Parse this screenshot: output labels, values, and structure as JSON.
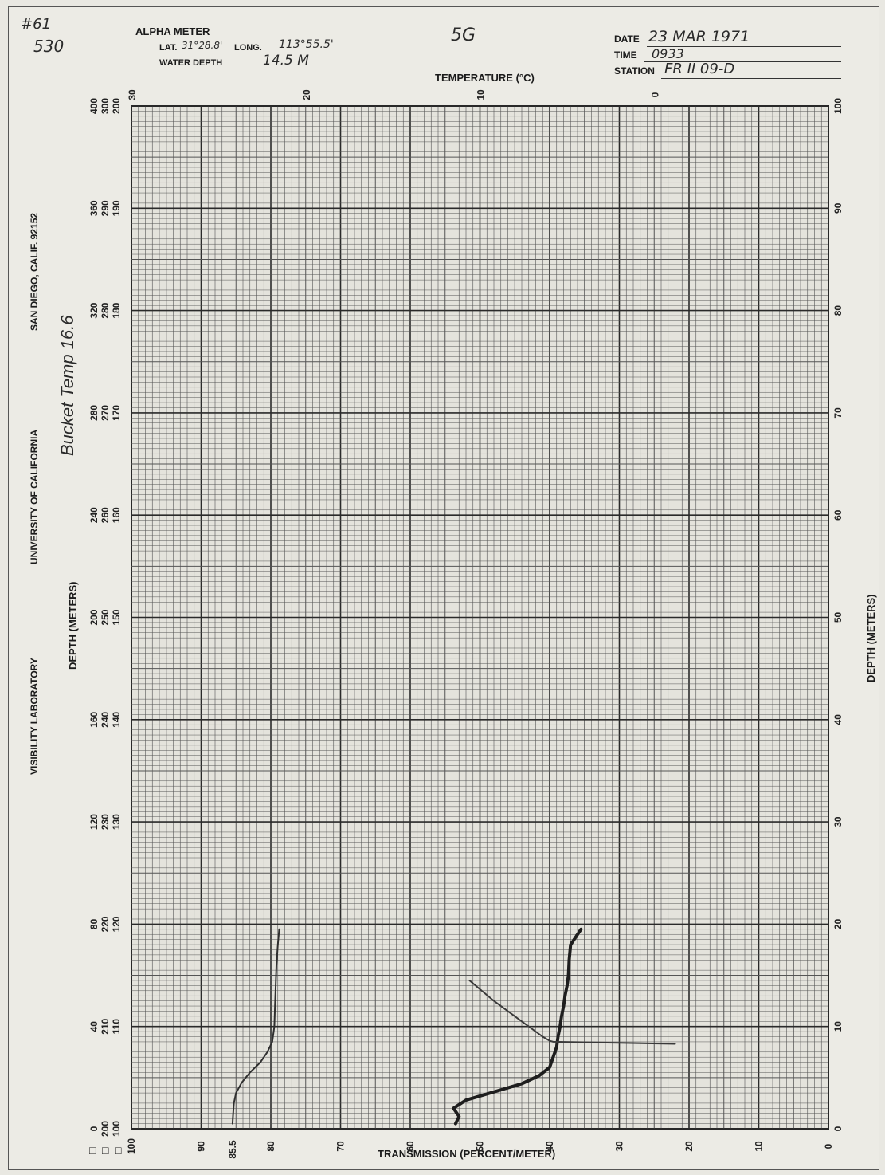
{
  "form": {
    "corner_1": "#61",
    "corner_2": "530",
    "title": "ALPHA METER",
    "lat_label": "LAT.",
    "lat_value": "31°28.8'",
    "long_label": "LONG.",
    "long_value": "113°55.5'",
    "water_depth_label": "WATER DEPTH",
    "water_depth_value": "14.5 M",
    "center_note": "5G",
    "date_label": "DATE",
    "date_value": "23 MAR 1971",
    "time_label": "TIME",
    "time_value": "0933",
    "station_label": "STATION",
    "station_value": "FR II 09-D",
    "bucket_temp_note": "Bucket Temp 16.6",
    "lab": "VISIBILITY LABORATORY",
    "university": "UNIVERSITY OF CALIFORNIA",
    "city": "SAN DIEGO, CALIF.  92152",
    "boxes": [
      "□",
      "□",
      "□"
    ]
  },
  "chart_data": {
    "type": "line",
    "xlabel": "TRANSMISSION (PERCENT/METER)",
    "top_label": "TEMPERATURE (°C)",
    "ylabel_left": "DEPTH (METERS)",
    "ylabel_right": "DEPTH (METERS)",
    "xlim": [
      100,
      0
    ],
    "ylim": [
      0,
      100
    ],
    "x_ticks": [
      "100",
      "90",
      "80",
      "70",
      "60",
      "50",
      "40",
      "30",
      "20",
      "10",
      "0"
    ],
    "x_annotation": "85.5",
    "top_ticks": [
      "30",
      "20",
      "10",
      "0"
    ],
    "top_tick_positions": [
      0,
      25,
      50,
      75
    ],
    "y_ticks_right": [
      "0",
      "10",
      "20",
      "30",
      "40",
      "50",
      "60",
      "70",
      "80",
      "90",
      "100"
    ],
    "left_scales": [
      [
        "0",
        "40",
        "80",
        "120",
        "160",
        "200",
        "240",
        "280",
        "320",
        "360",
        "400"
      ],
      [
        "200",
        "210",
        "220",
        "230",
        "240",
        "250",
        "260",
        "270",
        "280",
        "290",
        "300"
      ],
      [
        "100",
        "110",
        "120",
        "130",
        "140",
        "150",
        "160",
        "170",
        "180",
        "190",
        "200"
      ]
    ],
    "grid": true,
    "series": [
      {
        "color": "#2f2f2f",
        "x": [
          85.5,
          85.4,
          85.3,
          85.0,
          84.2,
          83.0,
          81.5,
          80.5,
          79.8,
          79.5,
          79.4,
          79.3,
          79.2,
          79.0,
          78.8
        ],
        "y": [
          0.5,
          1.5,
          2.5,
          3.5,
          4.5,
          5.5,
          6.5,
          7.5,
          8.5,
          10,
          12,
          14,
          16,
          18,
          19.5
        ]
      },
      {
        "color": "#1e1e1e",
        "x": [
          53.5,
          53.0,
          53.8,
          52.0,
          48.0,
          44.0,
          41.5,
          40.0,
          39.5,
          39.0,
          38.8,
          38.5,
          38.3,
          38.0,
          37.8,
          37.5,
          37.3,
          37.2,
          37.0,
          35.5
        ],
        "y": [
          0.5,
          1.2,
          2.0,
          2.8,
          3.6,
          4.4,
          5.2,
          6.0,
          7.0,
          8.0,
          9.0,
          10.0,
          11.0,
          12.0,
          13.0,
          14.0,
          15.0,
          16.5,
          18.0,
          19.5
        ]
      },
      {
        "color": "#3a3a3a",
        "x": [
          51.5,
          48.0,
          44.0,
          41.0,
          40.0,
          39.5,
          30.0,
          22.0
        ],
        "y": [
          14.5,
          12.5,
          10.5,
          9.0,
          8.6,
          8.5,
          8.4,
          8.3
        ]
      }
    ]
  }
}
